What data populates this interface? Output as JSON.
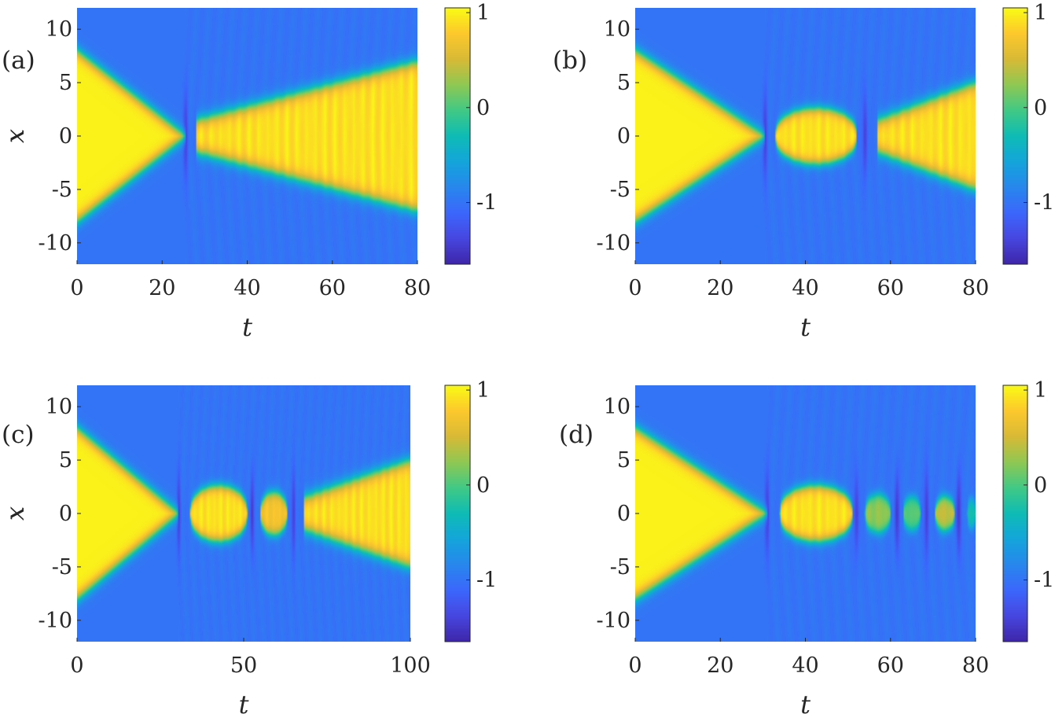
{
  "colormap": "parula",
  "colors": {
    "background_field": "#2f6ff0",
    "soliton_core": "#f5e920",
    "axis_text": "#262626"
  },
  "chart_data": [
    {
      "type": "heatmap",
      "panel_label": "(a)",
      "xlabel": "t",
      "ylabel": "x",
      "xlim": [
        0,
        80
      ],
      "ylim": [
        -12,
        12
      ],
      "xticks": [
        0,
        20,
        40,
        60,
        80
      ],
      "xtick_labels": [
        "0",
        "20",
        "40",
        "60",
        "80"
      ],
      "yticks": [
        10,
        5,
        0,
        -5,
        -10
      ],
      "ytick_labels": [
        "10",
        "5",
        "0",
        "-5",
        "-10"
      ],
      "colorbar": {
        "range": [
          -1.65,
          1.05
        ],
        "ticks": [
          1,
          0,
          -1
        ],
        "tick_labels": [
          "1",
          "0",
          "-1"
        ]
      },
      "collisions_t": [
        25.5
      ],
      "bubbles": [],
      "outgoing": {
        "t_start": 28,
        "width_at_end": 7
      }
    },
    {
      "type": "heatmap",
      "panel_label": "(b)",
      "xlabel": "t",
      "ylabel": "x",
      "xlim": [
        0,
        80
      ],
      "ylim": [
        -12,
        12
      ],
      "xticks": [
        0,
        20,
        40,
        60,
        80
      ],
      "xtick_labels": [
        "0",
        "20",
        "40",
        "60",
        "80"
      ],
      "yticks": [
        10,
        5,
        0,
        -5,
        -10
      ],
      "ytick_labels": [
        "10",
        "5",
        "0",
        "-5",
        "-10"
      ],
      "colorbar": {
        "range": [
          -1.65,
          1.05
        ],
        "ticks": [
          1,
          0,
          -1
        ],
        "tick_labels": [
          "1",
          "0",
          "-1"
        ]
      },
      "collisions_t": [
        30.5,
        54
      ],
      "bubbles": [
        {
          "t0": 33,
          "t1": 52,
          "halfwidth": 2.6,
          "amp": 1
        }
      ],
      "outgoing": {
        "t_start": 57,
        "width_at_end": 5
      }
    },
    {
      "type": "heatmap",
      "panel_label": "(c)",
      "xlabel": "t",
      "ylabel": "x",
      "xlim": [
        0,
        100
      ],
      "ylim": [
        -12,
        12
      ],
      "xticks": [
        0,
        50,
        100
      ],
      "xtick_labels": [
        "0",
        "50",
        "100"
      ],
      "yticks": [
        10,
        5,
        0,
        -5,
        -10
      ],
      "ytick_labels": [
        "10",
        "5",
        "0",
        "-5",
        "-10"
      ],
      "colorbar": {
        "range": [
          -1.65,
          1.05
        ],
        "ticks": [
          1,
          0,
          -1
        ],
        "tick_labels": [
          "1",
          "0",
          "-1"
        ]
      },
      "collisions_t": [
        30.5,
        52.5,
        65
      ],
      "bubbles": [
        {
          "t0": 34,
          "t1": 51,
          "halfwidth": 2.6,
          "amp": 1
        },
        {
          "t0": 55,
          "t1": 63,
          "halfwidth": 2.0,
          "amp": 0.9
        }
      ],
      "outgoing": {
        "t_start": 68,
        "width_at_end": 5
      }
    },
    {
      "type": "heatmap",
      "panel_label": "(d)",
      "xlabel": "t",
      "ylabel": "x",
      "xlim": [
        0,
        80
      ],
      "ylim": [
        -12,
        12
      ],
      "xticks": [
        0,
        20,
        40,
        60,
        80
      ],
      "xtick_labels": [
        "0",
        "20",
        "40",
        "60",
        "80"
      ],
      "yticks": [
        10,
        5,
        0,
        -5,
        -10
      ],
      "ytick_labels": [
        "10",
        "5",
        "0",
        "-5",
        "-10"
      ],
      "colorbar": {
        "range": [
          -1.65,
          1.05
        ],
        "ticks": [
          1,
          0,
          -1
        ],
        "tick_labels": [
          "1",
          "0",
          "-1"
        ]
      },
      "collisions_t": [
        31,
        52,
        61.5,
        68.5,
        76
      ],
      "bubbles": [
        {
          "t0": 34,
          "t1": 51,
          "halfwidth": 2.6,
          "amp": 1
        },
        {
          "t0": 54,
          "t1": 60,
          "halfwidth": 1.8,
          "amp": 0.65
        },
        {
          "t0": 63,
          "t1": 67,
          "halfwidth": 1.6,
          "amp": 0.55
        },
        {
          "t0": 70.5,
          "t1": 75,
          "halfwidth": 1.6,
          "amp": 0.75
        },
        {
          "t0": 78,
          "t1": 80,
          "halfwidth": 1.4,
          "amp": 0.4
        }
      ],
      "outgoing": null
    }
  ]
}
